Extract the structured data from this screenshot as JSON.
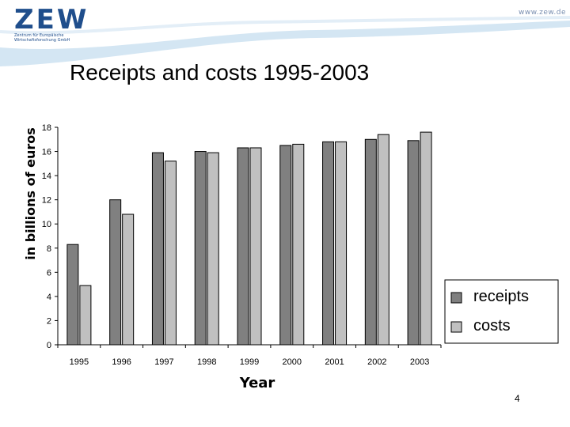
{
  "header": {
    "logo_text": "ZEW",
    "logo_subtitle": "Zentrum für Europäische Wirtschaftsforschung GmbH",
    "site_url": "www.zew.de"
  },
  "slide": {
    "title": "Receipts and costs 1995-2003",
    "page_number": "4"
  },
  "colors": {
    "receipts": "#808080",
    "costs": "#c0c0c0",
    "header_wave": "#cfe3f2",
    "brand": "#1f4e8c"
  },
  "chart_data": {
    "type": "bar",
    "categories": [
      "1995",
      "1996",
      "1997",
      "1998",
      "1999",
      "2000",
      "2001",
      "2002",
      "2003"
    ],
    "series": [
      {
        "name": "receipts",
        "values": [
          8.3,
          12.0,
          15.9,
          16.0,
          16.3,
          16.5,
          16.8,
          17.0,
          16.9
        ]
      },
      {
        "name": "costs",
        "values": [
          4.9,
          10.8,
          15.2,
          15.9,
          16.3,
          16.6,
          16.8,
          17.4,
          17.6
        ]
      }
    ],
    "xlabel": "Year",
    "ylabel": "in billions of euros",
    "ylim": [
      0,
      18
    ],
    "yticks": [
      "0",
      "2",
      "4",
      "6",
      "8",
      "10",
      "12",
      "14",
      "16",
      "18"
    ],
    "grid": false,
    "legend_position": "right"
  }
}
